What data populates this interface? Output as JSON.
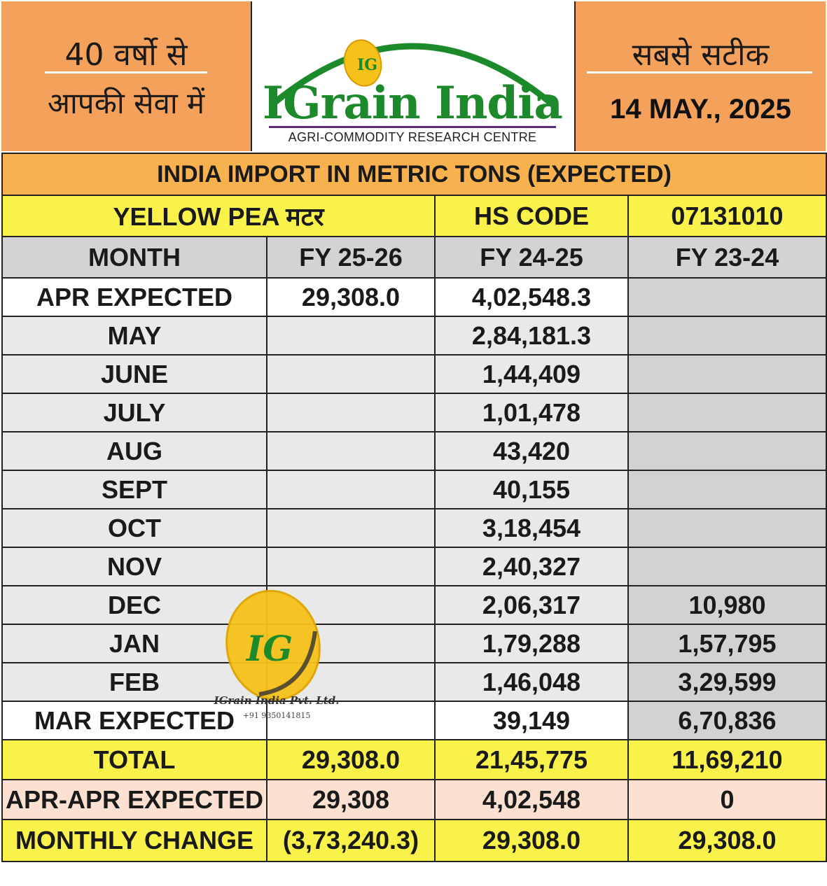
{
  "header": {
    "left_line1": "40 वर्षो से",
    "left_line2": "आपकी सेवा में",
    "logo_initials": "IG",
    "logo_title": "IGrain India",
    "logo_subtitle": "AGRI-COMMODITY RESEARCH CENTRE",
    "right_line1": "सबसे सटीक",
    "date": "14 MAY., 2025"
  },
  "table": {
    "title": "INDIA IMPORT IN METRIC TONS (EXPECTED)",
    "product": "YELLOW PEA मटर",
    "hs_label": "HS CODE",
    "hs_code": "07131010",
    "columns": [
      "MONTH",
      "FY 25-26",
      "FY 24-25",
      "FY 23-24"
    ],
    "rows": [
      {
        "month": "APR  EXPECTED",
        "fy2526": "29,308.0",
        "fy2425": "4,02,548.3",
        "fy2324": ""
      },
      {
        "month": "MAY",
        "fy2526": "",
        "fy2425": "2,84,181.3",
        "fy2324": ""
      },
      {
        "month": "JUNE",
        "fy2526": "",
        "fy2425": "1,44,409",
        "fy2324": ""
      },
      {
        "month": "JULY",
        "fy2526": "",
        "fy2425": "1,01,478",
        "fy2324": ""
      },
      {
        "month": "AUG",
        "fy2526": "",
        "fy2425": "43,420",
        "fy2324": ""
      },
      {
        "month": "SEPT",
        "fy2526": "",
        "fy2425": "40,155",
        "fy2324": ""
      },
      {
        "month": "OCT",
        "fy2526": "",
        "fy2425": "3,18,454",
        "fy2324": ""
      },
      {
        "month": "NOV",
        "fy2526": "",
        "fy2425": "2,40,327",
        "fy2324": ""
      },
      {
        "month": "DEC",
        "fy2526": "",
        "fy2425": "2,06,317",
        "fy2324": "10,980"
      },
      {
        "month": "JAN",
        "fy2526": "",
        "fy2425": "1,79,288",
        "fy2324": "1,57,795"
      },
      {
        "month": "FEB",
        "fy2526": "",
        "fy2425": "1,46,048",
        "fy2324": "3,29,599"
      },
      {
        "month": "MAR  EXPECTED",
        "fy2526": "",
        "fy2425": "39,149",
        "fy2324": "6,70,836"
      }
    ],
    "total": {
      "label": "TOTAL",
      "fy2526": "29,308.0",
      "fy2425": "21,45,775",
      "fy2324": "11,69,210"
    },
    "apr_apr": {
      "label": "APR-APR EXPECTED",
      "fy2526": "29,308",
      "fy2425": "4,02,548",
      "fy2324": "0"
    },
    "monthly_change": {
      "label": "MONTHLY CHANGE",
      "fy2526": "(3,73,240.3)",
      "fy2425": "29,308.0",
      "fy2324": "29,308.0"
    }
  },
  "watermark": {
    "initials": "IG",
    "company": "IGrain India Pvt. Ltd.",
    "phone": "+91 9350141815"
  },
  "colors": {
    "orange": "#f4a15b",
    "yellow": "#f8f24a",
    "logo_green": "#1c8a2a",
    "negative": "#d9463a",
    "positive": "#7cc35a"
  }
}
